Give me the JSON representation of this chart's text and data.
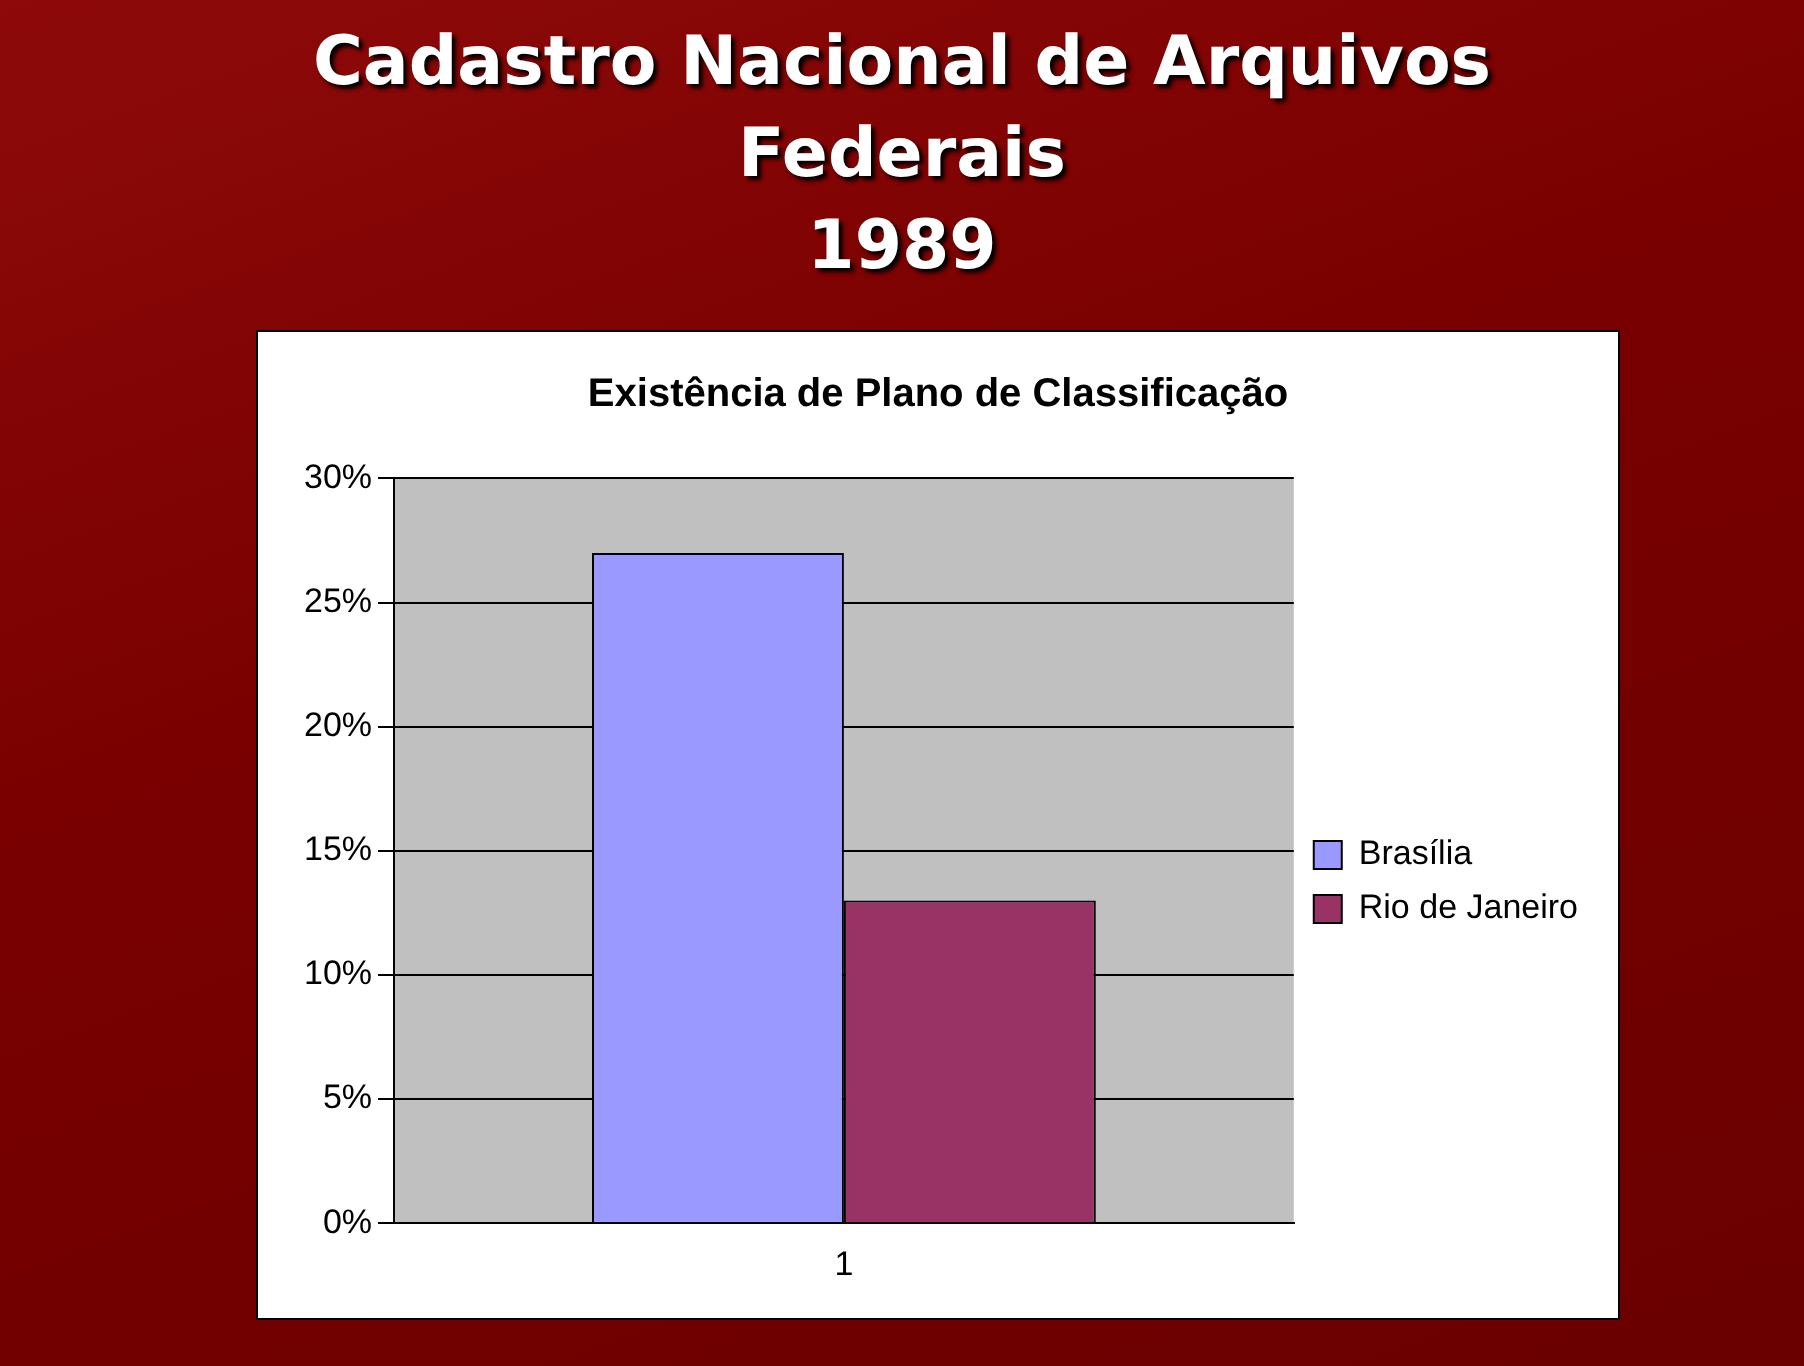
{
  "chart_data": {
    "type": "bar",
    "title": "Cadastro Nacional de Arquivos\nFederais\n1989",
    "subtitle": "Existência de Plano de Classificação",
    "categories": [
      "1"
    ],
    "series": [
      {
        "name": "Brasília",
        "color": "#9999ff",
        "values": [
          27
        ]
      },
      {
        "name": "Rio de Janeiro",
        "color": "#993366",
        "values": [
          13
        ]
      }
    ],
    "ylim": [
      0,
      30
    ],
    "yticks": [
      {
        "value": 0,
        "label": "0%"
      },
      {
        "value": 5,
        "label": "5%"
      },
      {
        "value": 10,
        "label": "10%"
      },
      {
        "value": 15,
        "label": "15%"
      },
      {
        "value": 20,
        "label": "20%"
      },
      {
        "value": 25,
        "label": "25%"
      },
      {
        "value": 30,
        "label": "30%"
      }
    ],
    "grid": "y",
    "legend": "right"
  }
}
